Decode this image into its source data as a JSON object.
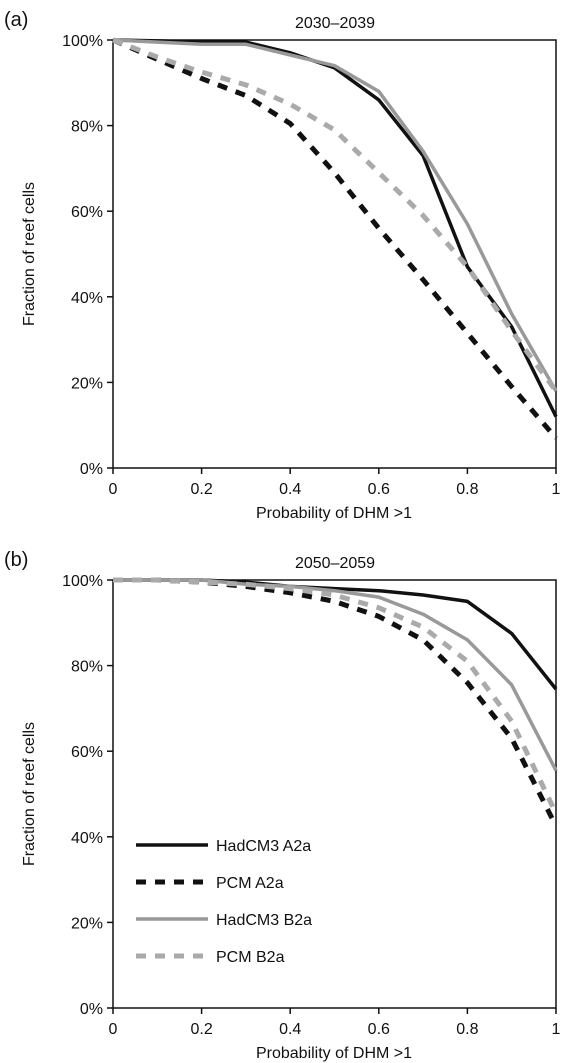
{
  "chart_data": [
    {
      "panel_label": "(a)",
      "type": "line",
      "title": "2030–2039",
      "xlabel": "Probability of DHM >1",
      "ylabel": "Fraction of reef cells",
      "xlim": [
        0,
        1
      ],
      "ylim": [
        0,
        100
      ],
      "x_ticks": [
        "0",
        "0.2",
        "0.4",
        "0.6",
        "0.8",
        "1"
      ],
      "y_ticks": [
        "0%",
        "20%",
        "40%",
        "60%",
        "80%",
        "100%"
      ],
      "grid": false,
      "legend": "none",
      "x": [
        0,
        0.1,
        0.2,
        0.3,
        0.4,
        0.5,
        0.6,
        0.7,
        0.8,
        0.9,
        1.0
      ],
      "series": [
        {
          "values": [
            100,
            99.8,
            99.5,
            99.5,
            97,
            93.5,
            86,
            73,
            47,
            33,
            12
          ],
          "color": "#111111",
          "dash": "solid"
        },
        {
          "values": [
            100,
            95.5,
            91,
            87,
            80.5,
            69,
            56,
            44,
            31.5,
            19,
            7
          ],
          "color": "#111111",
          "dash": "dashed"
        },
        {
          "values": [
            100,
            99.5,
            99,
            99,
            96.5,
            94,
            88,
            74,
            57,
            36,
            18
          ],
          "color": "#999999",
          "dash": "solid"
        },
        {
          "values": [
            100,
            96,
            92.5,
            89.5,
            85,
            79,
            69,
            59,
            47,
            32,
            18
          ],
          "color": "#aaaaaa",
          "dash": "dashed"
        }
      ]
    },
    {
      "panel_label": "(b)",
      "type": "line",
      "title": "2050–2059",
      "xlabel": "Probability of DHM >1",
      "ylabel": "Fraction of reef cells",
      "xlim": [
        0,
        1
      ],
      "ylim": [
        0,
        100
      ],
      "x_ticks": [
        "0",
        "0.2",
        "0.4",
        "0.6",
        "0.8",
        "1"
      ],
      "y_ticks": [
        "0%",
        "20%",
        "40%",
        "60%",
        "80%",
        "100%"
      ],
      "grid": false,
      "legend": "lower-left",
      "x": [
        0,
        0.1,
        0.2,
        0.3,
        0.4,
        0.5,
        0.6,
        0.7,
        0.8,
        0.9,
        1.0
      ],
      "series": [
        {
          "name": "HadCM3 A2a",
          "values": [
            100,
            100,
            100,
            99.5,
            98.5,
            98,
            97.5,
            96.5,
            95,
            87.5,
            74.5
          ],
          "color": "#111111",
          "dash": "solid"
        },
        {
          "name": "PCM A2a",
          "values": [
            100,
            100,
            99.5,
            98.5,
            97,
            95,
            91.5,
            86,
            76,
            63,
            42.5
          ],
          "color": "#111111",
          "dash": "dashed"
        },
        {
          "name": "HadCM3 B2a",
          "values": [
            100,
            100,
            100,
            99,
            98.5,
            97.5,
            96,
            92,
            86,
            75.5,
            55.5
          ],
          "color": "#999999",
          "dash": "solid"
        },
        {
          "name": "PCM B2a",
          "values": [
            100,
            100,
            99.5,
            99,
            98,
            96.5,
            93.5,
            89,
            81,
            67,
            45.5
          ],
          "color": "#aaaaaa",
          "dash": "dashed"
        }
      ]
    }
  ]
}
